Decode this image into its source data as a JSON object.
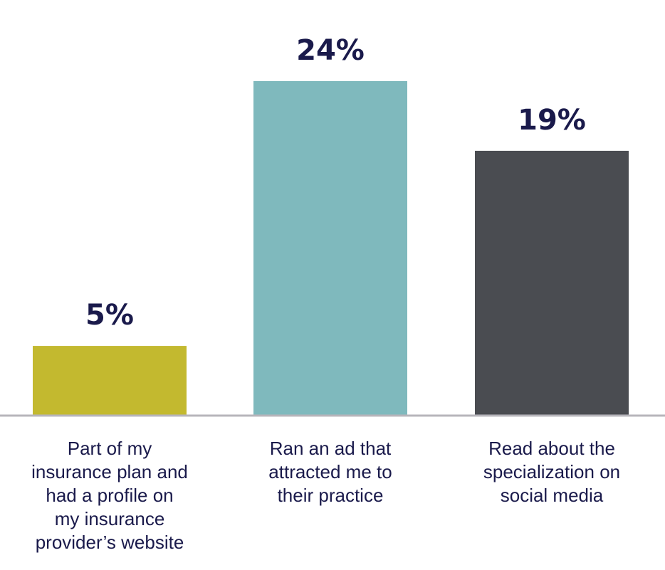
{
  "chart_data": {
    "type": "bar",
    "categories": [
      "Part of my insurance plan and had a profile on my insurance provider’s website",
      "Ran an ad that attracted me to their practice",
      "Read about the specialization on social media"
    ],
    "category_lines": [
      [
        "Part of my",
        "insurance plan and",
        "had a profile on",
        "my insurance",
        "provider’s website"
      ],
      [
        "Ran an ad that",
        "attracted me to",
        "their practice"
      ],
      [
        "Read about the",
        "specialization on",
        "social media"
      ]
    ],
    "values": [
      5,
      24,
      19
    ],
    "value_labels": [
      "5%",
      "24%",
      "19%"
    ],
    "colors": [
      "#c3b92f",
      "#7fb9bd",
      "#4a4c51"
    ],
    "title": "",
    "xlabel": "",
    "ylabel": "",
    "ylim": [
      0,
      24
    ],
    "grid": false,
    "legend": "none"
  }
}
